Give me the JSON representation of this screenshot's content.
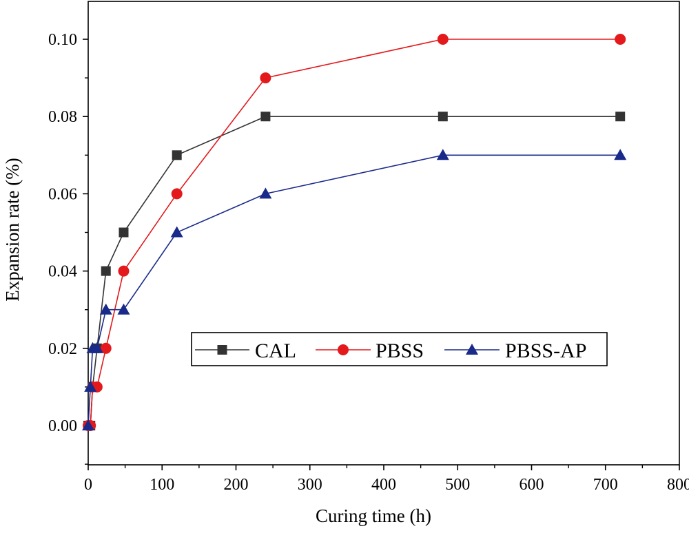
{
  "chart_data": {
    "type": "line",
    "title": "",
    "xlabel": "Curing time (h)",
    "ylabel": "Expansion rate (%)",
    "xlim": [
      0,
      800
    ],
    "ylim": [
      -0.01,
      0.11
    ],
    "x_ticks": [
      0,
      100,
      200,
      300,
      400,
      500,
      600,
      700,
      800
    ],
    "x_tick_labels": [
      "0",
      "100",
      "200",
      "300",
      "400",
      "500",
      "600",
      "700",
      "800"
    ],
    "y_ticks": [
      0.0,
      0.02,
      0.04,
      0.06,
      0.08,
      0.1
    ],
    "y_tick_labels": [
      "0.00",
      "0.02",
      "0.04",
      "0.06",
      "0.08",
      "0.10"
    ],
    "grid": false,
    "legend_position": "center-right",
    "series": [
      {
        "name": "CAL",
        "color": "#333333",
        "marker": "square",
        "x": [
          0,
          3,
          6,
          12,
          24,
          48,
          120,
          240,
          480,
          720
        ],
        "values": [
          0.0,
          0.0,
          0.01,
          0.02,
          0.04,
          0.05,
          0.07,
          0.08,
          0.08,
          0.08
        ]
      },
      {
        "name": "PBSS",
        "color": "#e3191c",
        "marker": "circle",
        "x": [
          0,
          3,
          6,
          12,
          24,
          48,
          120,
          240,
          480,
          720
        ],
        "values": [
          0.0,
          0.0,
          0.01,
          0.01,
          0.02,
          0.04,
          0.06,
          0.09,
          0.1,
          0.1
        ]
      },
      {
        "name": "PBSS-AP",
        "color": "#1a2a8a",
        "marker": "triangle",
        "x": [
          0,
          3,
          6,
          12,
          24,
          48,
          120,
          240,
          480,
          720
        ],
        "values": [
          0.0,
          0.01,
          0.02,
          0.02,
          0.03,
          0.03,
          0.05,
          0.06,
          0.07,
          0.07
        ]
      }
    ]
  }
}
